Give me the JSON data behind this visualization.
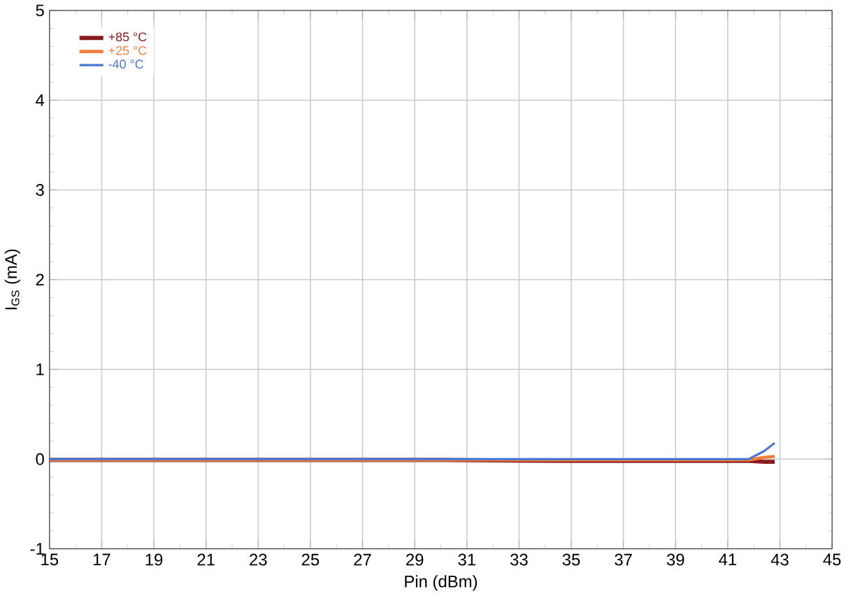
{
  "chart_data": {
    "type": "line",
    "xlabel": "Pin (dBm)",
    "ylabel": "I$_{GS}$ (mA)",
    "xlim": [
      15,
      45
    ],
    "xticks": [
      15,
      17,
      19,
      21,
      23,
      25,
      27,
      29,
      31,
      33,
      35,
      37,
      39,
      41,
      43,
      45
    ],
    "ylim": [
      -1,
      5
    ],
    "yticks": [
      -1,
      0,
      1,
      2,
      3,
      4,
      5
    ],
    "grid": true,
    "legend": "top left",
    "line_style": "solid",
    "marker": "none",
    "series": [
      {
        "name": "+85 °C",
        "color": "#8b1a1a",
        "x": [
          15,
          20,
          25,
          30,
          35,
          40,
          41.8,
          42.4,
          42.8
        ],
        "values": [
          -0.01,
          -0.01,
          -0.01,
          -0.01,
          -0.02,
          -0.02,
          -0.02,
          -0.03,
          -0.03
        ]
      },
      {
        "name": "+25 °C",
        "color": "#f0803c",
        "x": [
          15,
          20,
          25,
          30,
          35,
          40,
          41.8,
          42.4,
          42.8
        ],
        "values": [
          -0.01,
          -0.01,
          -0.01,
          -0.01,
          -0.01,
          -0.01,
          -0.01,
          0.02,
          0.03
        ]
      },
      {
        "name": "-40 °C",
        "color": "#4a78d0",
        "x": [
          15,
          20,
          25,
          30,
          35,
          40,
          41.8,
          42.4,
          42.8
        ],
        "values": [
          0,
          0,
          0,
          0,
          0,
          0,
          0,
          0.09,
          0.18
        ]
      }
    ]
  }
}
